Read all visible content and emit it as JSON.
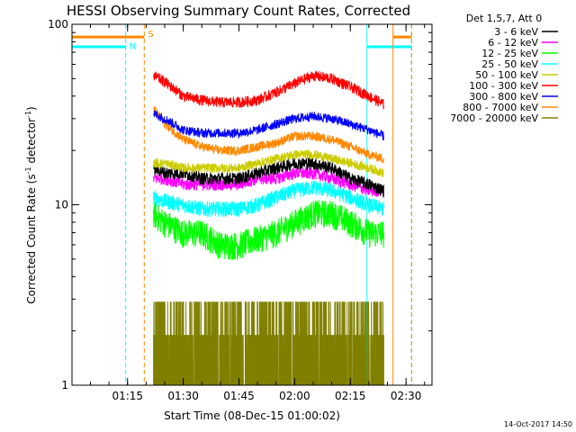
{
  "chart_data": {
    "type": "line",
    "title": "HESSI Observing Summary Count Rates, Corrected",
    "xlabel": "Start Time (08-Dec-15 01:00:02)",
    "ylabel": "Corrected Count Rate (s",
    "ylabel_sup1": "-1",
    "ylabel_mid": " detector",
    "ylabel_sup2": "-1",
    "ylabel_end": ")",
    "y_scale": "log",
    "ylim": [
      1,
      100
    ],
    "y_ticks": [
      1,
      10,
      100
    ],
    "y_tick_labels": [
      "1",
      "10",
      "100"
    ],
    "xlim": [
      "01:00:02",
      "02:37:00"
    ],
    "x_ticks": [
      "01:15",
      "01:30",
      "01:45",
      "02:00",
      "02:15",
      "02:30"
    ],
    "legend_title": "Det 1,5,7, Att 0",
    "legend_placement": "right",
    "grid": false,
    "series": [
      {
        "name": "3 - 6 keV",
        "color": "#000000",
        "x": [
          "01:22",
          "01:25",
          "01:30",
          "01:35",
          "01:40",
          "01:45",
          "01:50",
          "01:55",
          "02:00",
          "02:05",
          "02:10",
          "02:15",
          "02:20",
          "02:24"
        ],
        "y": [
          16,
          15,
          15,
          14,
          14,
          14,
          15,
          16,
          17,
          17,
          16,
          14,
          13,
          12
        ]
      },
      {
        "name": "6 - 12 keV",
        "color": "#ff00ff",
        "x": [
          "01:22",
          "01:25",
          "01:30",
          "01:35",
          "01:40",
          "01:45",
          "01:50",
          "01:55",
          "02:00",
          "02:05",
          "02:10",
          "02:15",
          "02:20",
          "02:24"
        ],
        "y": [
          14,
          14,
          13,
          13,
          13,
          13,
          14,
          14,
          15,
          15,
          14,
          13,
          12,
          12
        ]
      },
      {
        "name": "12 - 25 keV",
        "color": "#00ff00",
        "x": [
          "01:22",
          "01:25",
          "01:30",
          "01:35",
          "01:40",
          "01:45",
          "01:50",
          "01:55",
          "02:00",
          "02:05",
          "02:10",
          "02:15",
          "02:20",
          "02:24"
        ],
        "y": [
          9,
          8,
          7,
          7,
          6,
          6,
          6.5,
          7,
          8,
          9,
          9,
          8,
          7,
          7
        ]
      },
      {
        "name": "25 - 50 keV",
        "color": "#00ffff",
        "x": [
          "01:22",
          "01:25",
          "01:30",
          "01:35",
          "01:40",
          "01:45",
          "01:50",
          "01:55",
          "02:00",
          "02:05",
          "02:10",
          "02:15",
          "02:20",
          "02:24"
        ],
        "y": [
          11,
          10.5,
          10,
          9.5,
          9.5,
          9.5,
          10,
          11,
          12,
          12.5,
          12,
          11,
          10,
          9.5
        ]
      },
      {
        "name": "50 - 100 keV",
        "color": "#cccc00",
        "x": [
          "01:22",
          "01:25",
          "01:30",
          "01:35",
          "01:40",
          "01:45",
          "01:50",
          "01:55",
          "02:00",
          "02:05",
          "02:10",
          "02:15",
          "02:20",
          "02:24"
        ],
        "y": [
          17,
          17,
          16,
          16,
          16,
          16,
          17,
          18,
          19,
          19,
          18,
          17,
          16,
          15
        ]
      },
      {
        "name": "100 - 300 keV",
        "color": "#ff0000",
        "x": [
          "01:22",
          "01:25",
          "01:30",
          "01:35",
          "01:40",
          "01:45",
          "01:50",
          "01:55",
          "02:00",
          "02:05",
          "02:10",
          "02:15",
          "02:20",
          "02:24"
        ],
        "y": [
          52,
          48,
          40,
          38,
          37,
          37,
          38,
          42,
          47,
          52,
          50,
          45,
          40,
          36
        ]
      },
      {
        "name": "300 - 800 keV",
        "color": "#0000ff",
        "x": [
          "01:22",
          "01:25",
          "01:30",
          "01:35",
          "01:40",
          "01:45",
          "01:50",
          "01:55",
          "02:00",
          "02:05",
          "02:10",
          "02:15",
          "02:20",
          "02:24"
        ],
        "y": [
          32,
          30,
          26,
          25,
          25,
          25,
          26,
          28,
          30,
          31,
          30,
          28,
          26,
          24
        ]
      },
      {
        "name": "800 - 7000 keV",
        "color": "#ff8800",
        "x": [
          "01:22",
          "01:25",
          "01:30",
          "01:35",
          "01:40",
          "01:45",
          "01:50",
          "01:55",
          "02:00",
          "02:05",
          "02:10",
          "02:15",
          "02:20",
          "02:24"
        ],
        "y": [
          34,
          28,
          23,
          21,
          20,
          20,
          21,
          22,
          24,
          24,
          23,
          21,
          19,
          18
        ]
      },
      {
        "name": "7000 - 20000 keV",
        "color": "#808000",
        "x": [
          "01:22",
          "01:25",
          "01:30",
          "01:35",
          "01:40",
          "01:45",
          "01:50",
          "01:55",
          "02:00",
          "02:05",
          "02:10",
          "02:15",
          "02:20",
          "02:24"
        ],
        "y": [
          2.5,
          2.3,
          1.8,
          1.5,
          1.4,
          1.2,
          1.6,
          2.0,
          2.2,
          2.3,
          2.0,
          1.7,
          1.5,
          1.4
        ]
      }
    ],
    "annotations": [
      {
        "text": "N",
        "color": "#00ffff",
        "x": "01:15:30",
        "y": 73
      },
      {
        "text": "S",
        "color": "#ff8800",
        "x": "01:20:30",
        "y": 85
      }
    ],
    "vertical_lines": [
      {
        "color": "#00ffff",
        "style": "dashed",
        "x": "01:14:30"
      },
      {
        "color": "#ff8800",
        "style": "dashed",
        "x": "01:19:30"
      },
      {
        "color": "#00ffff",
        "style": "solid",
        "x": "02:19:30"
      },
      {
        "color": "#ff8800",
        "style": "solid",
        "x": "02:26:30"
      },
      {
        "color": "#00ffff",
        "style": "dashed",
        "x": "02:31:30"
      },
      {
        "color": "#ff8800",
        "style": "dashed",
        "x": "02:31:30"
      }
    ],
    "flag_bars": [
      {
        "color": "#00ffff",
        "y": 75,
        "from": "01:00:02",
        "to": "01:14:30"
      },
      {
        "color": "#ff8800",
        "y": 85,
        "from": "01:00:02",
        "to": "01:19:30"
      },
      {
        "color": "#00ffff",
        "y": 75,
        "from": "02:19:30",
        "to": "02:31:30"
      },
      {
        "color": "#ff8800",
        "y": 85,
        "from": "02:26:30",
        "to": "02:31:30"
      }
    ],
    "timestamp": "14-Oct-2017 14:50"
  }
}
